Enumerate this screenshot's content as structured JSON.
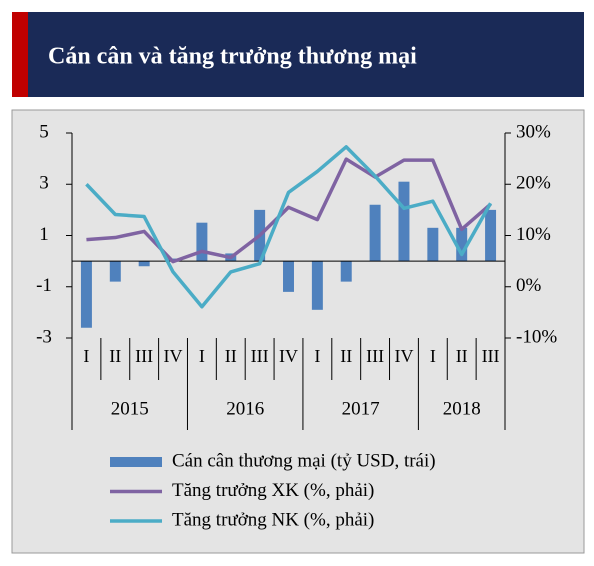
{
  "chart_data": {
    "type": "bar",
    "title": "Cán cân và tăng trưởng thương mại",
    "categories": [
      "I",
      "II",
      "III",
      "IV",
      "I",
      "II",
      "III",
      "IV",
      "I",
      "II",
      "III",
      "IV",
      "I",
      "II",
      "III"
    ],
    "groups": [
      "2015",
      "2016",
      "2017",
      "2018"
    ],
    "series": [
      {
        "name": "Cán cân thương mại (tỷ USD, trái)",
        "type": "bar",
        "axis": "y",
        "color": "#4f81bd",
        "values": [
          -2.6,
          -0.8,
          -0.2,
          0.1,
          1.5,
          0.3,
          2.0,
          -1.2,
          -1.9,
          -0.8,
          2.2,
          3.1,
          1.3,
          1.3,
          2.0
        ]
      },
      {
        "name": "Tăng trưởng XK (%, phải)",
        "type": "line",
        "axis": "y2",
        "color": "#7f63a2",
        "values": [
          9.2,
          9.6,
          10.8,
          4.9,
          6.9,
          5.7,
          10.0,
          15.5,
          13.1,
          24.9,
          21.4,
          24.7,
          24.7,
          11.2,
          16.1
        ]
      },
      {
        "name": "Tăng trưởng NK (%, phải)",
        "type": "line",
        "axis": "y2",
        "color": "#4bacc6",
        "values": [
          20.0,
          14.1,
          13.7,
          2.9,
          -3.9,
          2.9,
          4.5,
          18.4,
          22.5,
          27.3,
          21.6,
          15.3,
          16.7,
          6.3,
          16.3
        ]
      }
    ],
    "ylim": [
      -3,
      5
    ],
    "yticks": [
      5,
      3,
      1,
      -1,
      -3
    ],
    "y2lim": [
      -10,
      30
    ],
    "y2ticks": [
      {
        "value": 30,
        "label": "30%"
      },
      {
        "value": 20,
        "label": "20%"
      },
      {
        "value": 10,
        "label": "10%"
      },
      {
        "value": 0,
        "label": "0%"
      },
      {
        "value": -10,
        "label": "-10%"
      }
    ]
  }
}
